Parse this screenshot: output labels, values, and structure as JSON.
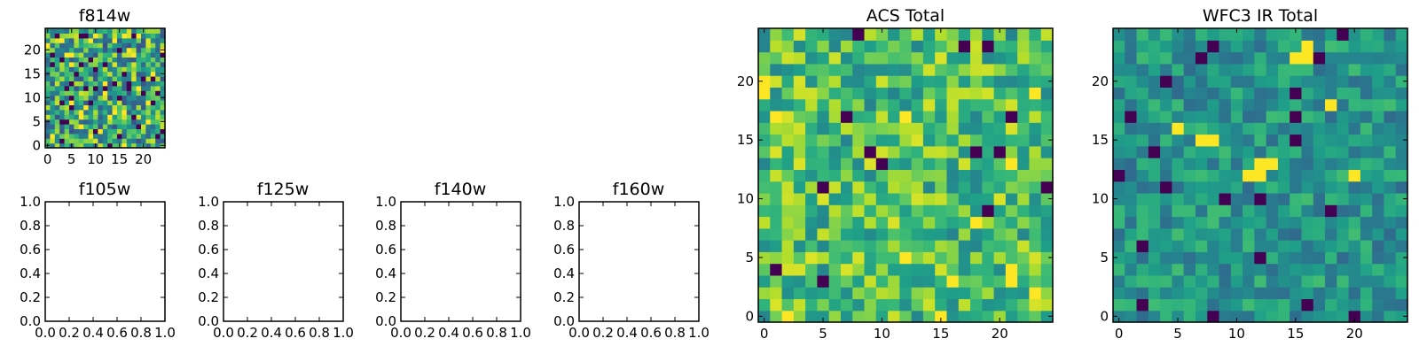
{
  "chart_data": [
    {
      "type": "heatmap",
      "title": "f814w",
      "rows": 25,
      "cols": 25,
      "xlim": [
        -0.5,
        24.5
      ],
      "ylim": [
        -0.5,
        24.5
      ],
      "xticks": [
        0,
        5,
        10,
        15,
        20
      ],
      "yticks": [
        0,
        5,
        10,
        15,
        20
      ],
      "colormap": "viridis",
      "value_range": [
        0,
        1
      ],
      "seed": 814,
      "value_model": {
        "base": 0.6,
        "spread": 0.7,
        "outlier_rate": 0.05
      }
    },
    {
      "type": "heatmap",
      "title": "ACS Total",
      "rows": 25,
      "cols": 25,
      "xlim": [
        -0.5,
        24.5
      ],
      "ylim": [
        -0.5,
        24.5
      ],
      "xticks": [
        0,
        5,
        10,
        15,
        20
      ],
      "yticks": [
        0,
        5,
        10,
        15,
        20
      ],
      "colormap": "viridis",
      "value_range": [
        0,
        1
      ],
      "seed": 2024,
      "value_model": {
        "base": 0.7,
        "spread": 0.5,
        "outlier_rate": 0.015
      },
      "highlights": [
        {
          "row": 23,
          "col": 17,
          "value": 0.0
        },
        {
          "row": 20,
          "col": 0,
          "value": 1.0
        },
        {
          "row": 19,
          "col": 0,
          "value": 1.0
        },
        {
          "row": 17,
          "col": 7,
          "value": 0.0
        },
        {
          "row": 14,
          "col": 9,
          "value": 0.0
        },
        {
          "row": 14,
          "col": 18,
          "value": 0.0
        },
        {
          "row": 14,
          "col": 20,
          "value": 0.0
        },
        {
          "row": 13,
          "col": 10,
          "value": 0.0
        },
        {
          "row": 11,
          "col": 24,
          "value": 0.0
        },
        {
          "row": 5,
          "col": 12,
          "value": 1.0
        },
        {
          "row": 4,
          "col": 21,
          "value": 1.0
        },
        {
          "row": 3,
          "col": 21,
          "value": 1.0
        },
        {
          "row": 3,
          "col": 5,
          "value": 0.0
        }
      ]
    },
    {
      "type": "heatmap",
      "title": "WFC3 IR Total",
      "rows": 25,
      "cols": 25,
      "xlim": [
        -0.5,
        24.5
      ],
      "ylim": [
        -0.5,
        24.5
      ],
      "xticks": [
        0,
        5,
        10,
        15,
        20
      ],
      "yticks": [
        0,
        5,
        10,
        15,
        20
      ],
      "colormap": "viridis",
      "value_range": [
        0,
        1
      ],
      "seed": 160,
      "value_model": {
        "base": 0.52,
        "spread": 0.35,
        "outlier_rate": 0.01
      },
      "highlights": [
        {
          "row": 23,
          "col": 8,
          "value": 0.0
        },
        {
          "row": 22,
          "col": 15,
          "value": 1.0
        },
        {
          "row": 22,
          "col": 16,
          "value": 1.0
        },
        {
          "row": 23,
          "col": 16,
          "value": 1.0
        },
        {
          "row": 22,
          "col": 17,
          "value": 0.0
        },
        {
          "row": 20,
          "col": 4,
          "value": 0.0
        },
        {
          "row": 19,
          "col": 15,
          "value": 0.0
        },
        {
          "row": 15,
          "col": 7,
          "value": 1.0
        },
        {
          "row": 15,
          "col": 8,
          "value": 1.0
        },
        {
          "row": 13,
          "col": 12,
          "value": 1.0
        },
        {
          "row": 13,
          "col": 13,
          "value": 1.0
        },
        {
          "row": 12,
          "col": 12,
          "value": 1.0
        },
        {
          "row": 12,
          "col": 0,
          "value": 0.0
        },
        {
          "row": 11,
          "col": 4,
          "value": 0.0
        },
        {
          "row": 10,
          "col": 12,
          "value": 0.0
        },
        {
          "row": 6,
          "col": 2,
          "value": 0.0
        },
        {
          "row": 5,
          "col": 12,
          "value": 0.0
        },
        {
          "row": 1,
          "col": 2,
          "value": 0.0
        },
        {
          "row": 1,
          "col": 16,
          "value": 0.0
        },
        {
          "row": 0,
          "col": 8,
          "value": 0.0
        }
      ]
    },
    {
      "type": "heatmap",
      "title": "f105w",
      "xlim": [
        0.0,
        1.0
      ],
      "ylim": [
        0.0,
        1.0
      ],
      "xtick_labels": [
        "0.0",
        "0.2",
        "0.4",
        "0.6",
        "0.8",
        "1.0"
      ],
      "ytick_labels": [
        "0.0",
        "0.2",
        "0.4",
        "0.6",
        "0.8",
        "1.0"
      ],
      "empty": true
    },
    {
      "type": "heatmap",
      "title": "f125w",
      "xlim": [
        0.0,
        1.0
      ],
      "ylim": [
        0.0,
        1.0
      ],
      "xtick_labels": [
        "0.0",
        "0.2",
        "0.4",
        "0.6",
        "0.8",
        "1.0"
      ],
      "ytick_labels": [
        "0.0",
        "0.2",
        "0.4",
        "0.6",
        "0.8",
        "1.0"
      ],
      "empty": true
    },
    {
      "type": "heatmap",
      "title": "f140w",
      "xlim": [
        0.0,
        1.0
      ],
      "ylim": [
        0.0,
        1.0
      ],
      "xtick_labels": [
        "0.0",
        "0.2",
        "0.4",
        "0.6",
        "0.8",
        "1.0"
      ],
      "ytick_labels": [
        "0.0",
        "0.2",
        "0.4",
        "0.6",
        "0.8",
        "1.0"
      ],
      "empty": true
    },
    {
      "type": "heatmap",
      "title": "f160w",
      "xlim": [
        0.0,
        1.0
      ],
      "ylim": [
        0.0,
        1.0
      ],
      "xtick_labels": [
        "0.0",
        "0.2",
        "0.4",
        "0.6",
        "0.8",
        "1.0"
      ],
      "ytick_labels": [
        "0.0",
        "0.2",
        "0.4",
        "0.6",
        "0.8",
        "1.0"
      ],
      "empty": true
    }
  ]
}
